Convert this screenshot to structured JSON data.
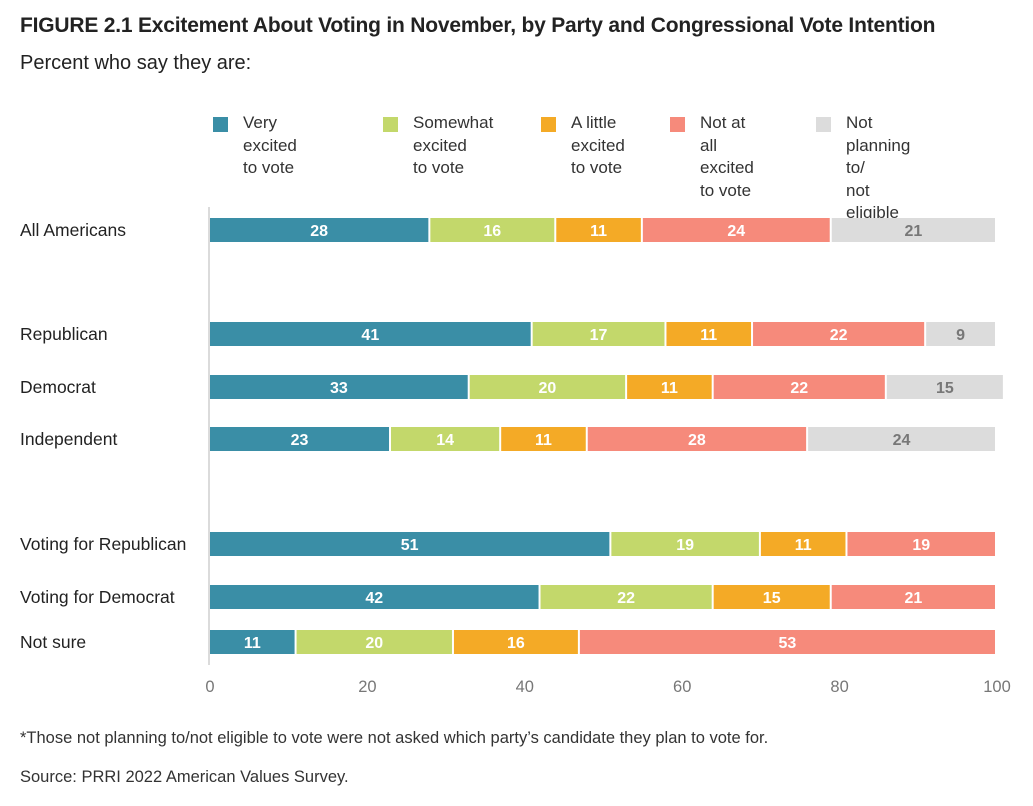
{
  "figure": {
    "title": "FIGURE 2.1  Excitement About Voting in November, by Party and Congressional Vote Intention",
    "subtitle": "Percent who say they are:",
    "footnote": "*Those not planning to/not eligible to vote were not asked which party’s candidate they plan to vote for.",
    "source": "Source: PRRI 2022 American Values Survey."
  },
  "legend": [
    {
      "label": "Very excited\nto vote",
      "color": "#3a8ea6"
    },
    {
      "label": "Somewhat\nexcited\nto vote",
      "color": "#c3d86b"
    },
    {
      "label": "A little\nexcited\nto vote",
      "color": "#f4aa26"
    },
    {
      "label": "Not at all\nexcited\nto vote",
      "color": "#f68a7b"
    },
    {
      "label": "Not planning to/\nnot eligible to vote*",
      "color": "#dcdcdc"
    }
  ],
  "chart_data": {
    "type": "bar",
    "orientation": "horizontal",
    "stacked": true,
    "xlim": [
      0,
      100
    ],
    "xticks": [
      0,
      20,
      40,
      60,
      80,
      100
    ],
    "grid": false,
    "legend_position": "top",
    "categories": [
      "All Americans",
      "Republican",
      "Democrat",
      "Independent",
      "Voting for Republican",
      "Voting for Democrat",
      "Not sure"
    ],
    "series": [
      {
        "name": "Very excited to vote",
        "color": "#3a8ea6",
        "label_color": "#ffffff",
        "values": [
          28,
          41,
          33,
          23,
          51,
          42,
          11
        ]
      },
      {
        "name": "Somewhat excited to vote",
        "color": "#c3d86b",
        "label_color": "#ffffff",
        "values": [
          16,
          17,
          20,
          14,
          19,
          22,
          20
        ]
      },
      {
        "name": "A little excited to vote",
        "color": "#f4aa26",
        "label_color": "#ffffff",
        "values": [
          11,
          11,
          11,
          11,
          11,
          15,
          16
        ]
      },
      {
        "name": "Not at all excited to vote",
        "color": "#f68a7b",
        "label_color": "#ffffff",
        "values": [
          24,
          22,
          22,
          28,
          19,
          21,
          53
        ]
      },
      {
        "name": "Not planning to/not eligible to vote*",
        "color": "#dcdcdc",
        "label_color": "#777777",
        "values": [
          21,
          9,
          15,
          24,
          null,
          null,
          null
        ]
      }
    ]
  }
}
